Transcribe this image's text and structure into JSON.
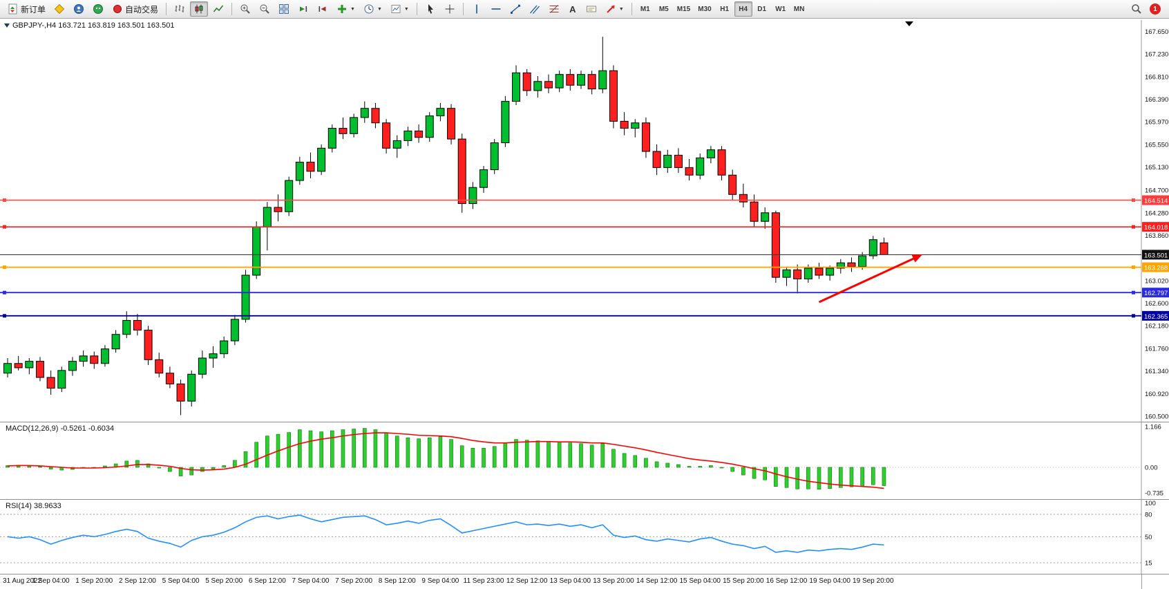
{
  "toolbar": {
    "new_order": "新订单",
    "auto_trading": "自动交易",
    "timeframes": [
      "M1",
      "M5",
      "M15",
      "M30",
      "H1",
      "H4",
      "D1",
      "W1",
      "MN"
    ],
    "active_timeframe": "H4",
    "notification_badge": "1"
  },
  "chart": {
    "header": "GBPJPY-,H4  163.721 163.819 163.501 163.501",
    "levels": [
      {
        "name": "resistance-line-1",
        "label": "164.514",
        "price": 164.514,
        "color": "#ff4a4a",
        "box": "#ff3b3b",
        "width": 1.6,
        "handles": true
      },
      {
        "name": "resistance-line-2",
        "label": "164.018",
        "price": 164.018,
        "color": "#ff1f1f",
        "box": "#ff1f1f",
        "width": 1.6,
        "handles": true
      },
      {
        "name": "current-price-line",
        "label": "163.501",
        "price": 163.501,
        "color": "#3c3c3c",
        "box": "#111111",
        "width": 1.1,
        "handles": false
      },
      {
        "name": "pivot-line",
        "label": "163.268",
        "price": 163.268,
        "color": "#ffa500",
        "box": "#ffa500",
        "width": 1.8,
        "handles": true
      },
      {
        "name": "support-line-1",
        "label": "162.797",
        "price": 162.797,
        "color": "#2a2ae0",
        "box": "#2a2ae0",
        "width": 1.8,
        "handles": true
      },
      {
        "name": "support-line-2",
        "label": "162.365",
        "price": 162.365,
        "color": "#0000a0",
        "box": "#0000a0",
        "width": 1.8,
        "handles": true
      }
    ]
  },
  "chart_data": {
    "type": "candlestick",
    "symbol": "GBPJPY-",
    "period": "H4",
    "price_range": [
      160.5,
      167.65
    ],
    "price_axis_ticks": [
      "167.650",
      "167.230",
      "166.810",
      "166.390",
      "165.970",
      "165.550",
      "165.130",
      "164.700",
      "164.280",
      "163.860",
      "163.020",
      "162.600",
      "162.180",
      "161.760",
      "161.340",
      "160.920",
      "160.500"
    ],
    "time_labels": [
      "31 Aug 2022",
      "1 Sep 04:00",
      "1 Sep 20:00",
      "2 Sep 12:00",
      "5 Sep 04:00",
      "5 Sep 20:00",
      "6 Sep 12:00",
      "7 Sep 04:00",
      "7 Sep 20:00",
      "8 Sep 12:00",
      "9 Sep 04:00",
      "11 Sep 23:00",
      "12 Sep 12:00",
      "13 Sep 04:00",
      "13 Sep 20:00",
      "14 Sep 12:00",
      "15 Sep 04:00",
      "15 Sep 20:00",
      "16 Sep 12:00",
      "19 Sep 04:00",
      "19 Sep 20:00"
    ],
    "candles": [
      [
        161.3,
        161.58,
        161.22,
        161.48
      ],
      [
        161.48,
        161.62,
        161.35,
        161.4
      ],
      [
        161.4,
        161.58,
        161.28,
        161.52
      ],
      [
        161.52,
        161.6,
        161.15,
        161.22
      ],
      [
        161.22,
        161.35,
        160.9,
        161.02
      ],
      [
        161.02,
        161.42,
        160.95,
        161.35
      ],
      [
        161.35,
        161.6,
        161.25,
        161.52
      ],
      [
        161.52,
        161.72,
        161.42,
        161.62
      ],
      [
        161.62,
        161.7,
        161.38,
        161.48
      ],
      [
        161.48,
        161.82,
        161.42,
        161.75
      ],
      [
        161.75,
        162.1,
        161.68,
        162.02
      ],
      [
        162.02,
        162.45,
        161.95,
        162.28
      ],
      [
        162.28,
        162.4,
        162.0,
        162.1
      ],
      [
        162.1,
        162.18,
        161.45,
        161.55
      ],
      [
        161.55,
        161.68,
        161.22,
        161.3
      ],
      [
        161.3,
        161.42,
        161.02,
        161.1
      ],
      [
        161.1,
        161.18,
        160.52,
        160.78
      ],
      [
        160.78,
        161.35,
        160.68,
        161.28
      ],
      [
        161.28,
        161.72,
        161.2,
        161.58
      ],
      [
        161.58,
        161.8,
        161.4,
        161.66
      ],
      [
        161.66,
        161.98,
        161.58,
        161.9
      ],
      [
        161.9,
        162.38,
        161.82,
        162.3
      ],
      [
        162.3,
        163.22,
        162.24,
        163.12
      ],
      [
        163.12,
        164.12,
        163.05,
        164.02
      ],
      [
        164.02,
        164.48,
        163.58,
        164.38
      ],
      [
        164.38,
        164.62,
        164.12,
        164.3
      ],
      [
        164.3,
        164.95,
        164.22,
        164.88
      ],
      [
        164.88,
        165.32,
        164.8,
        165.22
      ],
      [
        165.22,
        165.4,
        164.92,
        165.05
      ],
      [
        165.05,
        165.55,
        164.98,
        165.48
      ],
      [
        165.48,
        165.92,
        165.4,
        165.85
      ],
      [
        165.85,
        166.05,
        165.65,
        165.75
      ],
      [
        165.75,
        166.12,
        165.68,
        166.05
      ],
      [
        166.05,
        166.35,
        165.95,
        166.22
      ],
      [
        166.22,
        166.32,
        165.85,
        165.95
      ],
      [
        165.95,
        166.02,
        165.38,
        165.48
      ],
      [
        165.48,
        165.72,
        165.3,
        165.62
      ],
      [
        165.62,
        165.88,
        165.52,
        165.8
      ],
      [
        165.8,
        165.92,
        165.58,
        165.68
      ],
      [
        165.68,
        166.15,
        165.6,
        166.08
      ],
      [
        166.08,
        166.32,
        165.98,
        166.22
      ],
      [
        166.22,
        166.3,
        165.55,
        165.65
      ],
      [
        165.65,
        165.75,
        164.28,
        164.45
      ],
      [
        164.45,
        164.85,
        164.35,
        164.75
      ],
      [
        164.75,
        165.15,
        164.65,
        165.08
      ],
      [
        165.08,
        165.65,
        165.0,
        165.58
      ],
      [
        165.58,
        166.45,
        165.5,
        166.35
      ],
      [
        166.35,
        167.02,
        166.28,
        166.88
      ],
      [
        166.88,
        166.95,
        166.45,
        166.55
      ],
      [
        166.55,
        166.82,
        166.42,
        166.72
      ],
      [
        166.72,
        166.85,
        166.5,
        166.6
      ],
      [
        166.6,
        166.92,
        166.52,
        166.85
      ],
      [
        166.85,
        166.95,
        166.55,
        166.65
      ],
      [
        166.65,
        166.92,
        166.58,
        166.85
      ],
      [
        166.85,
        166.92,
        166.48,
        166.58
      ],
      [
        166.58,
        167.55,
        166.5,
        166.92
      ],
      [
        166.92,
        167.02,
        165.85,
        165.98
      ],
      [
        165.98,
        166.15,
        165.72,
        165.85
      ],
      [
        165.85,
        166.02,
        165.68,
        165.95
      ],
      [
        165.95,
        166.05,
        165.3,
        165.42
      ],
      [
        165.42,
        165.55,
        164.98,
        165.12
      ],
      [
        165.12,
        165.45,
        165.02,
        165.35
      ],
      [
        165.35,
        165.48,
        165.02,
        165.12
      ],
      [
        165.12,
        165.28,
        164.88,
        164.98
      ],
      [
        164.98,
        165.38,
        164.9,
        165.3
      ],
      [
        165.3,
        165.52,
        165.2,
        165.45
      ],
      [
        165.45,
        165.52,
        164.88,
        164.98
      ],
      [
        164.98,
        165.08,
        164.52,
        164.62
      ],
      [
        164.62,
        164.82,
        164.38,
        164.48
      ],
      [
        164.48,
        164.62,
        164.02,
        164.12
      ],
      [
        164.12,
        164.38,
        163.98,
        164.28
      ],
      [
        164.28,
        164.32,
        162.98,
        163.08
      ],
      [
        163.08,
        163.28,
        162.92,
        163.22
      ],
      [
        163.22,
        163.32,
        162.78,
        163.05
      ],
      [
        163.05,
        163.32,
        162.98,
        163.25
      ],
      [
        163.25,
        163.35,
        163.05,
        163.12
      ],
      [
        163.12,
        163.3,
        163.02,
        163.25
      ],
      [
        163.25,
        163.42,
        163.15,
        163.35
      ],
      [
        163.35,
        163.45,
        163.18,
        163.28
      ],
      [
        163.28,
        163.55,
        163.22,
        163.48
      ],
      [
        163.48,
        163.85,
        163.42,
        163.78
      ],
      [
        163.721,
        163.819,
        163.501,
        163.501
      ]
    ],
    "macd": {
      "label": "MACD(12,26,9) -0.5261 -0.6034",
      "ticks": [
        "1.166",
        "0.00",
        "-0.735"
      ],
      "values": [
        0.05,
        0.06,
        0.04,
        0.02,
        -0.05,
        -0.08,
        -0.06,
        -0.02,
        0.0,
        0.04,
        0.1,
        0.18,
        0.2,
        0.1,
        -0.02,
        -0.12,
        -0.25,
        -0.22,
        -0.12,
        -0.05,
        0.05,
        0.2,
        0.45,
        0.72,
        0.9,
        0.95,
        1.0,
        1.08,
        1.05,
        1.02,
        1.05,
        1.08,
        1.1,
        1.12,
        1.08,
        0.98,
        0.9,
        0.85,
        0.82,
        0.85,
        0.88,
        0.8,
        0.62,
        0.55,
        0.55,
        0.6,
        0.7,
        0.8,
        0.78,
        0.76,
        0.74,
        0.72,
        0.7,
        0.68,
        0.64,
        0.68,
        0.52,
        0.4,
        0.34,
        0.26,
        0.16,
        0.12,
        0.08,
        0.03,
        0.03,
        0.05,
        -0.02,
        -0.12,
        -0.22,
        -0.32,
        -0.36,
        -0.55,
        -0.58,
        -0.62,
        -0.62,
        -0.63,
        -0.61,
        -0.58,
        -0.56,
        -0.54,
        -0.5,
        -0.5261
      ],
      "signal": [
        0.04,
        0.05,
        0.05,
        0.04,
        0.02,
        0.0,
        -0.02,
        -0.02,
        -0.02,
        -0.01,
        0.01,
        0.04,
        0.08,
        0.08,
        0.06,
        0.03,
        -0.03,
        -0.07,
        -0.08,
        -0.07,
        -0.05,
        0.0,
        0.09,
        0.22,
        0.35,
        0.47,
        0.58,
        0.68,
        0.75,
        0.81,
        0.85,
        0.9,
        0.94,
        0.97,
        0.99,
        0.99,
        0.97,
        0.95,
        0.92,
        0.91,
        0.9,
        0.88,
        0.83,
        0.77,
        0.73,
        0.7,
        0.7,
        0.72,
        0.73,
        0.74,
        0.74,
        0.73,
        0.73,
        0.72,
        0.7,
        0.7,
        0.66,
        0.61,
        0.56,
        0.5,
        0.43,
        0.37,
        0.31,
        0.25,
        0.21,
        0.18,
        0.14,
        0.09,
        0.03,
        -0.04,
        -0.1,
        -0.19,
        -0.27,
        -0.34,
        -0.4,
        -0.44,
        -0.48,
        -0.51,
        -0.53,
        -0.55,
        -0.57,
        -0.6034
      ]
    },
    "rsi": {
      "label": "RSI(14) 38.9633",
      "ticks": [
        "100",
        "80",
        "50",
        "15"
      ],
      "dashed_levels": [
        80,
        50,
        15
      ],
      "values": [
        50,
        48,
        50,
        46,
        40,
        45,
        49,
        52,
        50,
        53,
        57,
        60,
        57,
        48,
        44,
        41,
        36,
        45,
        50,
        52,
        56,
        62,
        70,
        76,
        78,
        74,
        77,
        79,
        74,
        70,
        73,
        76,
        77,
        78,
        73,
        66,
        68,
        71,
        68,
        72,
        74,
        65,
        55,
        58,
        61,
        64,
        67,
        70,
        66,
        67,
        65,
        67,
        64,
        66,
        62,
        66,
        52,
        49,
        51,
        46,
        44,
        47,
        45,
        43,
        47,
        49,
        44,
        40,
        38,
        34,
        37,
        29,
        31,
        29,
        32,
        31,
        33,
        34,
        33,
        36,
        40,
        38.96
      ]
    },
    "trend_arrow": {
      "k1": 75,
      "p1": 162.62,
      "k2": 84.3,
      "p2": 163.48,
      "color": "#ff0000"
    },
    "colors": {
      "bull": "#00bf2f",
      "bear": "#ff1f1f",
      "wick": "#000000",
      "macd_bar": "#2fce2f",
      "macd_bar_border": "#0b7d0b",
      "macd_signal": "#ff0000",
      "rsi_line": "#1e90ff",
      "axis_line": "#9a9a9a"
    }
  }
}
